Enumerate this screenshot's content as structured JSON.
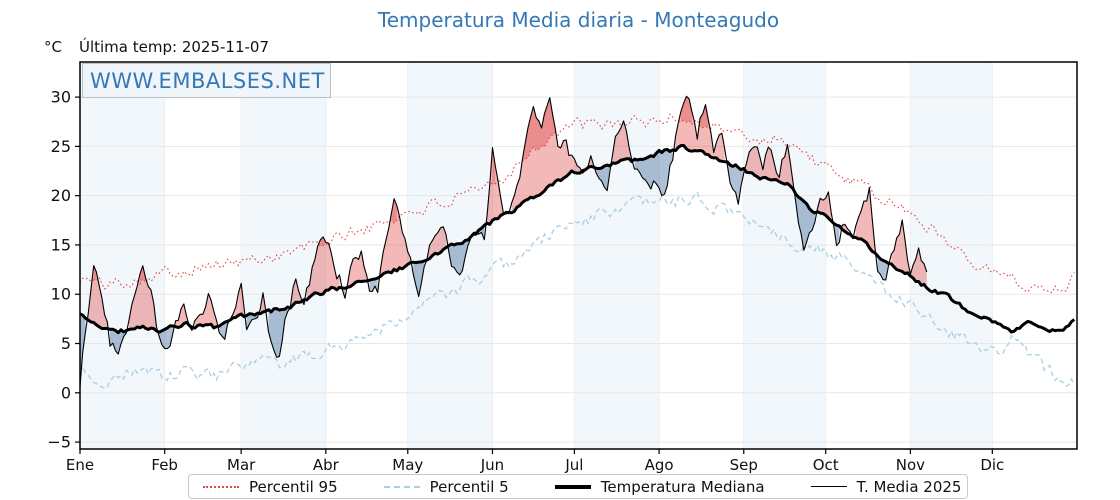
{
  "title": "Temperatura Media diaria - Monteagudo",
  "unit_label": "°C",
  "last_temp_label": "Última temp: 2025-11-07",
  "watermark": "WWW.EMBALSES.NET",
  "colors": {
    "title_blue": "#3478b5",
    "p95_line": "#e04848",
    "p5_line": "#a9cfe4",
    "median_line": "#000000",
    "t2025_line": "#000000",
    "warm_fill": "rgba(224,72,72,0.38)",
    "cold_fill": "rgba(54,101,151,0.40)",
    "month_band": "#f2f7fb",
    "grid": "#e7e7e7"
  },
  "legend": {
    "items": [
      {
        "label": "Percentil 95",
        "style": "dotted",
        "color": "#e04848"
      },
      {
        "label": "Percentil 5",
        "style": "dashed",
        "color": "#a9cfe4"
      },
      {
        "label": "Temperatura Mediana",
        "style": "solid-thick",
        "color": "#000000"
      },
      {
        "label": "T. Media 2025",
        "style": "solid-thin",
        "color": "#000000"
      }
    ]
  },
  "chart_data": {
    "type": "line",
    "title": "Temperatura Media diaria - Monteagudo",
    "ylabel": "°C",
    "x_unit": "day_of_year",
    "categories": [
      "Ene",
      "Feb",
      "Mar",
      "Abr",
      "May",
      "Jun",
      "Jul",
      "Ago",
      "Sep",
      "Oct",
      "Nov",
      "Dic"
    ],
    "month_days": [
      31,
      28,
      31,
      30,
      31,
      30,
      31,
      31,
      30,
      31,
      30,
      31
    ],
    "y_ticks": [
      -5,
      0,
      5,
      10,
      15,
      20,
      25,
      30
    ],
    "ylim": [
      -5.7,
      33.6
    ],
    "grid": true,
    "legend_position": "bottom",
    "last_day_2025": 311,
    "series": [
      {
        "name": "Percentil 95",
        "style": "dotted",
        "width": 1.1,
        "noise": 0.55,
        "seed": 101,
        "anchors": [
          [
            1,
            11.6
          ],
          [
            10,
            11.0
          ],
          [
            20,
            11.5
          ],
          [
            32,
            12.2
          ],
          [
            45,
            12.8
          ],
          [
            59,
            13.2
          ],
          [
            70,
            13.8
          ],
          [
            80,
            14.4
          ],
          [
            90,
            15.2
          ],
          [
            100,
            16.2
          ],
          [
            110,
            17.0
          ],
          [
            120,
            18.2
          ],
          [
            130,
            19.0
          ],
          [
            140,
            19.6
          ],
          [
            150,
            20.8
          ],
          [
            158,
            22.4
          ],
          [
            166,
            24.6
          ],
          [
            175,
            26.4
          ],
          [
            183,
            27.2
          ],
          [
            192,
            27.0
          ],
          [
            200,
            27.6
          ],
          [
            210,
            27.4
          ],
          [
            218,
            28.0
          ],
          [
            226,
            27.6
          ],
          [
            234,
            27.0
          ],
          [
            242,
            26.2
          ],
          [
            250,
            25.6
          ],
          [
            258,
            26.0
          ],
          [
            266,
            24.4
          ],
          [
            274,
            22.8
          ],
          [
            282,
            21.6
          ],
          [
            290,
            20.4
          ],
          [
            298,
            19.2
          ],
          [
            306,
            18.0
          ],
          [
            314,
            16.4
          ],
          [
            322,
            14.8
          ],
          [
            330,
            13.2
          ],
          [
            338,
            12.0
          ],
          [
            346,
            11.0
          ],
          [
            354,
            10.6
          ],
          [
            360,
            10.8
          ],
          [
            365,
            11.6
          ]
        ]
      },
      {
        "name": "Percentil 5",
        "style": "dashed",
        "width": 1.2,
        "noise": 0.6,
        "seed": 202,
        "anchors": [
          [
            1,
            2.6
          ],
          [
            8,
            0.9
          ],
          [
            16,
            1.8
          ],
          [
            24,
            2.6
          ],
          [
            32,
            1.4
          ],
          [
            40,
            2.2
          ],
          [
            50,
            1.6
          ],
          [
            59,
            2.4
          ],
          [
            68,
            3.2
          ],
          [
            76,
            2.6
          ],
          [
            85,
            3.8
          ],
          [
            95,
            4.8
          ],
          [
            105,
            5.8
          ],
          [
            115,
            7.2
          ],
          [
            125,
            8.8
          ],
          [
            135,
            10.0
          ],
          [
            145,
            11.2
          ],
          [
            155,
            12.6
          ],
          [
            165,
            14.6
          ],
          [
            175,
            16.4
          ],
          [
            185,
            17.6
          ],
          [
            195,
            18.4
          ],
          [
            205,
            19.0
          ],
          [
            215,
            19.4
          ],
          [
            225,
            19.6
          ],
          [
            233,
            19.0
          ],
          [
            241,
            18.2
          ],
          [
            249,
            17.2
          ],
          [
            257,
            16.2
          ],
          [
            265,
            15.0
          ],
          [
            273,
            14.6
          ],
          [
            281,
            13.2
          ],
          [
            289,
            11.8
          ],
          [
            297,
            10.4
          ],
          [
            305,
            9.0
          ],
          [
            313,
            7.6
          ],
          [
            321,
            6.0
          ],
          [
            329,
            4.6
          ],
          [
            337,
            4.0
          ],
          [
            343,
            6.0
          ],
          [
            350,
            3.2
          ],
          [
            357,
            2.0
          ],
          [
            365,
            1.2
          ]
        ]
      },
      {
        "name": "Temperatura Mediana",
        "style": "solid",
        "width": 3.0,
        "noise": 0.22,
        "seed": 303,
        "anchors": [
          [
            1,
            7.8
          ],
          [
            8,
            6.8
          ],
          [
            15,
            6.2
          ],
          [
            22,
            6.6
          ],
          [
            32,
            6.4
          ],
          [
            40,
            6.9
          ],
          [
            50,
            6.6
          ],
          [
            59,
            7.6
          ],
          [
            70,
            8.2
          ],
          [
            80,
            9.0
          ],
          [
            90,
            10.2
          ],
          [
            100,
            11.0
          ],
          [
            110,
            11.8
          ],
          [
            120,
            12.8
          ],
          [
            126,
            13.2
          ],
          [
            135,
            14.6
          ],
          [
            145,
            16.0
          ],
          [
            152,
            17.4
          ],
          [
            160,
            18.6
          ],
          [
            168,
            19.8
          ],
          [
            175,
            21.2
          ],
          [
            182,
            22.4
          ],
          [
            190,
            22.8
          ],
          [
            196,
            23.2
          ],
          [
            205,
            23.6
          ],
          [
            213,
            24.4
          ],
          [
            222,
            24.9
          ],
          [
            228,
            24.5
          ],
          [
            235,
            23.8
          ],
          [
            244,
            22.6
          ],
          [
            252,
            21.8
          ],
          [
            260,
            21.0
          ],
          [
            268,
            18.8
          ],
          [
            274,
            17.8
          ],
          [
            281,
            16.6
          ],
          [
            288,
            15.2
          ],
          [
            295,
            13.6
          ],
          [
            302,
            12.4
          ],
          [
            310,
            10.9
          ],
          [
            317,
            10.0
          ],
          [
            325,
            8.6
          ],
          [
            334,
            7.6
          ],
          [
            342,
            6.4
          ],
          [
            349,
            7.0
          ],
          [
            356,
            6.0
          ],
          [
            361,
            6.6
          ],
          [
            365,
            7.3
          ]
        ]
      },
      {
        "name": "T. Media 2025",
        "style": "solid",
        "width": 1.1,
        "noise": 0.7,
        "seed": 404,
        "anchors": [
          [
            1,
            0.8
          ],
          [
            3,
            6.5
          ],
          [
            6,
            12.9
          ],
          [
            9,
            10.0
          ],
          [
            12,
            5.2
          ],
          [
            15,
            4.1
          ],
          [
            18,
            5.8
          ],
          [
            21,
            9.8
          ],
          [
            24,
            13.1
          ],
          [
            27,
            10.0
          ],
          [
            30,
            5.4
          ],
          [
            33,
            4.4
          ],
          [
            36,
            6.8
          ],
          [
            39,
            8.4
          ],
          [
            42,
            6.0
          ],
          [
            45,
            7.4
          ],
          [
            48,
            9.6
          ],
          [
            51,
            7.0
          ],
          [
            54,
            5.6
          ],
          [
            57,
            8.2
          ],
          [
            60,
            10.4
          ],
          [
            62,
            5.6
          ],
          [
            65,
            7.8
          ],
          [
            68,
            9.8
          ],
          [
            71,
            5.2
          ],
          [
            74,
            4.0
          ],
          [
            77,
            8.6
          ],
          [
            80,
            11.4
          ],
          [
            83,
            9.0
          ],
          [
            86,
            12.4
          ],
          [
            89,
            14.8
          ],
          [
            92,
            15.8
          ],
          [
            95,
            12.6
          ],
          [
            98,
            10.4
          ],
          [
            101,
            13.8
          ],
          [
            104,
            14.6
          ],
          [
            107,
            11.0
          ],
          [
            110,
            10.6
          ],
          [
            113,
            15.4
          ],
          [
            116,
            18.8
          ],
          [
            119,
            16.0
          ],
          [
            122,
            13.0
          ],
          [
            125,
            10.8
          ],
          [
            128,
            13.4
          ],
          [
            131,
            16.2
          ],
          [
            134,
            16.4
          ],
          [
            137,
            13.6
          ],
          [
            140,
            12.0
          ],
          [
            143,
            14.4
          ],
          [
            146,
            16.4
          ],
          [
            149,
            15.2
          ],
          [
            152,
            24.3
          ],
          [
            155,
            19.0
          ],
          [
            158,
            17.4
          ],
          [
            161,
            21.0
          ],
          [
            164,
            25.2
          ],
          [
            167,
            29.6
          ],
          [
            170,
            27.0
          ],
          [
            173,
            29.0
          ],
          [
            176,
            24.0
          ],
          [
            179,
            25.6
          ],
          [
            182,
            23.0
          ],
          [
            185,
            21.4
          ],
          [
            188,
            23.8
          ],
          [
            191,
            21.0
          ],
          [
            194,
            20.4
          ],
          [
            197,
            26.0
          ],
          [
            200,
            27.9
          ],
          [
            203,
            23.0
          ],
          [
            206,
            21.6
          ],
          [
            209,
            20.8
          ],
          [
            212,
            21.2
          ],
          [
            215,
            20.6
          ],
          [
            218,
            24.0
          ],
          [
            221,
            28.6
          ],
          [
            224,
            29.9
          ],
          [
            227,
            26.4
          ],
          [
            230,
            29.8
          ],
          [
            233,
            25.0
          ],
          [
            236,
            26.2
          ],
          [
            239,
            21.8
          ],
          [
            242,
            19.2
          ],
          [
            245,
            23.4
          ],
          [
            248,
            24.6
          ],
          [
            251,
            23.2
          ],
          [
            254,
            24.8
          ],
          [
            257,
            22.4
          ],
          [
            260,
            25.3
          ],
          [
            263,
            19.0
          ],
          [
            266,
            14.8
          ],
          [
            269,
            16.4
          ],
          [
            272,
            19.6
          ],
          [
            275,
            20.6
          ],
          [
            278,
            15.0
          ],
          [
            281,
            17.6
          ],
          [
            284,
            16.4
          ],
          [
            287,
            18.0
          ],
          [
            290,
            20.6
          ],
          [
            293,
            12.8
          ],
          [
            296,
            11.2
          ],
          [
            299,
            14.0
          ],
          [
            302,
            16.8
          ],
          [
            305,
            12.6
          ],
          [
            308,
            14.2
          ],
          [
            311,
            11.6
          ]
        ]
      }
    ]
  }
}
